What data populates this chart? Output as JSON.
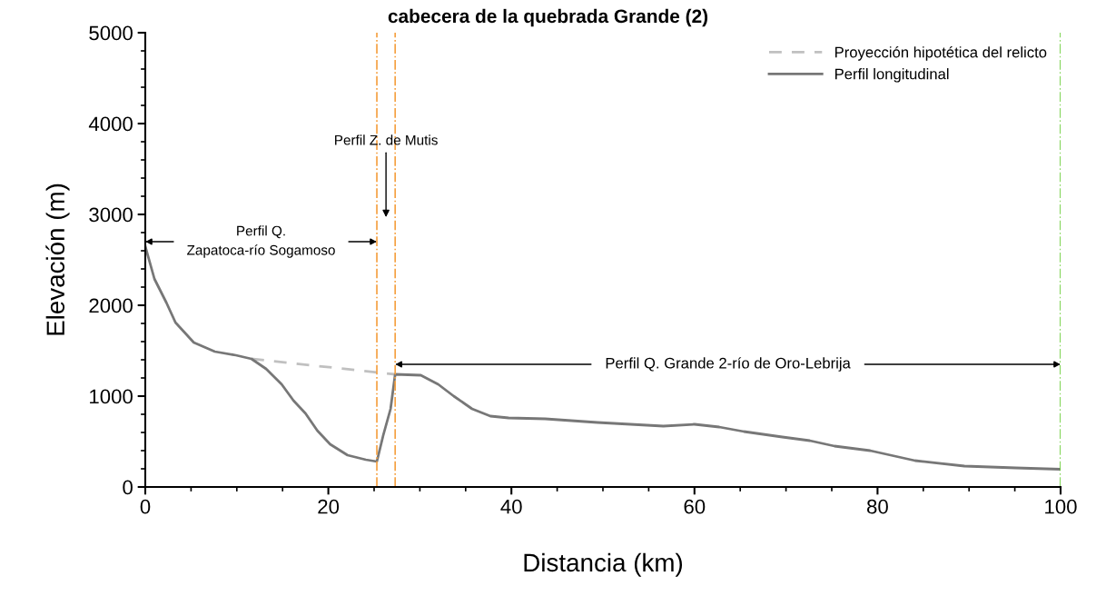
{
  "chart_data": {
    "type": "line",
    "title": "cabecera de la quebrada Grande (2)",
    "xlabel": "Distancia (km)",
    "ylabel": "Elevación (m)",
    "xlim": [
      0,
      100
    ],
    "xticks": [
      0,
      20,
      40,
      60,
      80,
      100
    ],
    "ylim": [
      0,
      5000
    ],
    "yticks": [
      0,
      1000,
      2000,
      3000,
      4000,
      5000
    ],
    "grid": false,
    "legend": "top right",
    "series": [
      {
        "name": "Proyección hipotética del relicto",
        "color": "#c0c0c0",
        "line_style": "dashed",
        "x": [
          11.6,
          27.3
        ],
        "values": [
          1410,
          1240
        ]
      },
      {
        "name": "Perfil longitudinal",
        "color": "#777777",
        "line_style": "solid",
        "x": [
          0,
          1,
          2.3,
          3.3,
          5.3,
          7.6,
          9.9,
          11.6,
          13.2,
          14.9,
          16.2,
          17.5,
          18.8,
          20.2,
          22.1,
          24.1,
          25.3,
          26.0,
          26.8,
          27.3,
          30.1,
          32.0,
          33.7,
          35.7,
          37.7,
          39.7,
          43.7,
          49.4,
          56.6,
          60.0,
          62.7,
          65.4,
          69.6,
          72.6,
          75.3,
          79.2,
          84.1,
          89.5,
          95.1,
          100
        ],
        "values": [
          2650,
          2290,
          2030,
          1810,
          1590,
          1490,
          1450,
          1410,
          1300,
          1130,
          950,
          810,
          620,
          470,
          350,
          300,
          280,
          570,
          860,
          1240,
          1230,
          1130,
          1000,
          860,
          780,
          760,
          750,
          710,
          670,
          690,
          660,
          610,
          550,
          510,
          450,
          400,
          290,
          230,
          210,
          195
        ]
      }
    ],
    "ref_lines": [
      {
        "axis": "x",
        "value": 25.3,
        "color": "#f5a040",
        "line_style": "dashdot"
      },
      {
        "axis": "x",
        "value": 27.3,
        "color": "#f5a040",
        "line_style": "dashdot"
      },
      {
        "axis": "x",
        "value": 100,
        "color": "#66cc33",
        "line_style": "dashdot"
      }
    ],
    "annotations": [
      {
        "text": "Perfil Q.\nZapatoca-río Sogamoso",
        "x": 25.3,
        "y": 2700
      },
      "Perfil Z. de Mutis",
      {
        "text": "Perfil Q. Grande 2-río de Oro-Lebrija",
        "x": 27.3,
        "y": 1350
      }
    ]
  }
}
